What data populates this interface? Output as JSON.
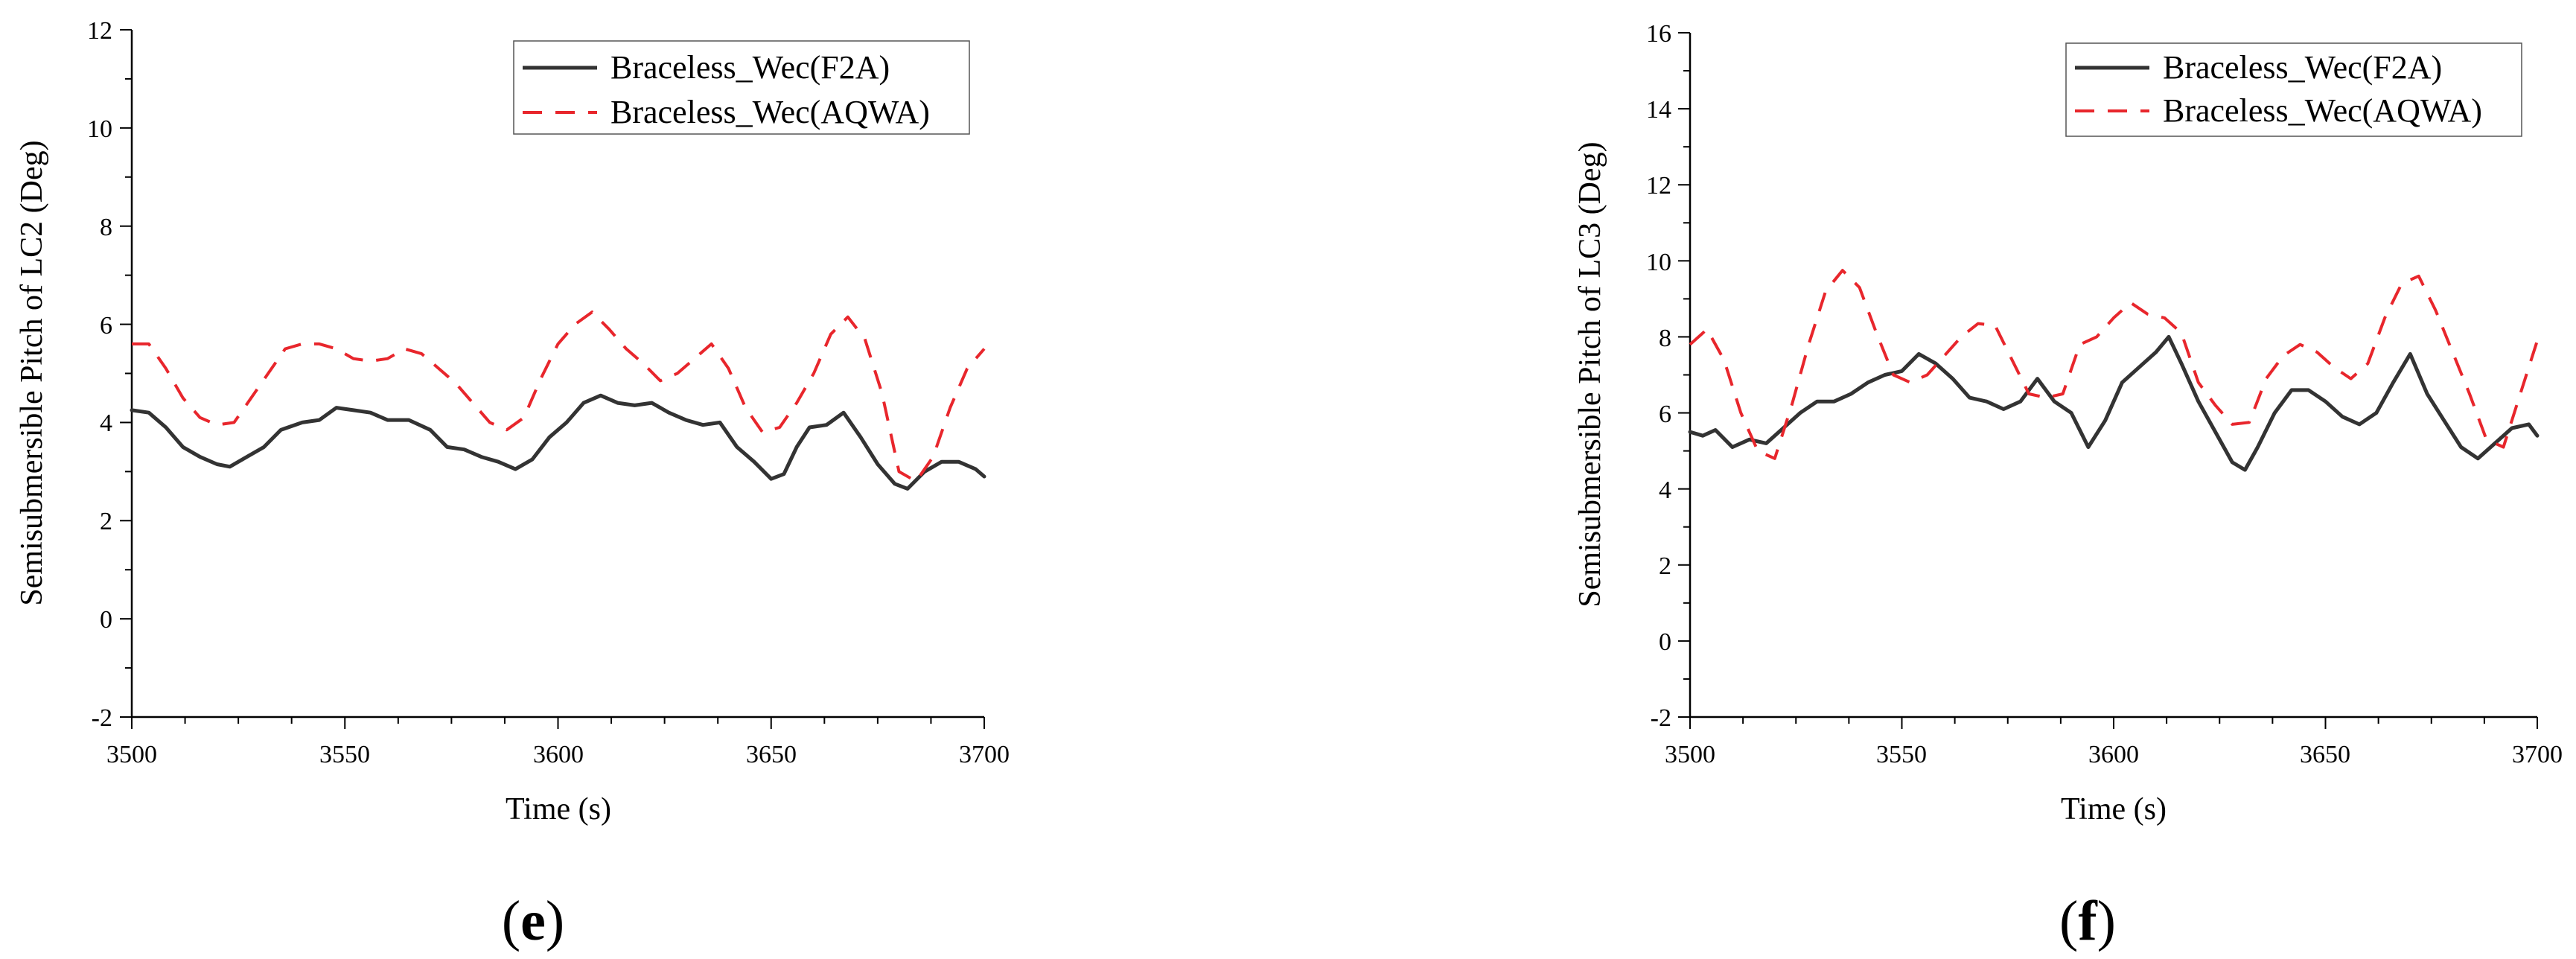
{
  "colors": {
    "f2a": "#333333",
    "aqwa": "#e8262c",
    "axis": "#000000"
  },
  "chart_data": [
    {
      "type": "line",
      "panel_label": "e",
      "panel_label_open": "(",
      "panel_label_close": ")",
      "xlabel": "Time (s)",
      "ylabel": "Semisubmersible Pitch of LC2 (Deg)",
      "xlim": [
        3500,
        3700
      ],
      "ylim": [
        -2,
        12
      ],
      "xticks": [
        "3500",
        "3550",
        "3600",
        "3650",
        "3700"
      ],
      "yticks": [
        "-2",
        "0",
        "2",
        "4",
        "6",
        "8",
        "10",
        "12"
      ],
      "legend_position": "top-right",
      "series": [
        {
          "name": "Braceless_Wec(F2A)",
          "style": "solid",
          "x": [
            3500,
            3504,
            3508,
            3512,
            3516,
            3520,
            3523,
            3527,
            3531,
            3535,
            3540,
            3544,
            3548,
            3552,
            3556,
            3560,
            3565,
            3570,
            3574,
            3578,
            3582,
            3586,
            3590,
            3594,
            3598,
            3602,
            3606,
            3610,
            3614,
            3618,
            3622,
            3626,
            3630,
            3634,
            3638,
            3642,
            3646,
            3650,
            3653,
            3656,
            3659,
            3663,
            3667,
            3671,
            3675,
            3679,
            3682,
            3686,
            3690,
            3694,
            3698,
            3700
          ],
          "values": [
            4.25,
            4.2,
            3.9,
            3.5,
            3.3,
            3.15,
            3.1,
            3.3,
            3.5,
            3.85,
            4.0,
            4.05,
            4.3,
            4.25,
            4.2,
            4.05,
            4.05,
            3.85,
            3.5,
            3.45,
            3.3,
            3.2,
            3.05,
            3.25,
            3.7,
            4.0,
            4.4,
            4.55,
            4.4,
            4.35,
            4.4,
            4.2,
            4.05,
            3.95,
            4.0,
            3.5,
            3.2,
            2.85,
            2.95,
            3.5,
            3.9,
            3.95,
            4.2,
            3.7,
            3.15,
            2.75,
            2.65,
            3.0,
            3.2,
            3.2,
            3.05,
            2.9
          ]
        },
        {
          "name": "Braceless_Wec(AQWA)",
          "style": "dashed",
          "x": [
            3500,
            3504,
            3508,
            3512,
            3516,
            3520,
            3524,
            3528,
            3532,
            3536,
            3540,
            3544,
            3548,
            3552,
            3556,
            3560,
            3564,
            3568,
            3572,
            3576,
            3580,
            3584,
            3588,
            3592,
            3596,
            3600,
            3604,
            3608,
            3612,
            3616,
            3620,
            3624,
            3628,
            3632,
            3636,
            3640,
            3644,
            3648,
            3652,
            3656,
            3660,
            3664,
            3668,
            3672,
            3676,
            3680,
            3684,
            3688,
            3692,
            3696,
            3700
          ],
          "values": [
            5.6,
            5.6,
            5.1,
            4.5,
            4.1,
            3.95,
            4.0,
            4.5,
            5.0,
            5.5,
            5.6,
            5.6,
            5.5,
            5.3,
            5.25,
            5.3,
            5.5,
            5.4,
            5.1,
            4.8,
            4.4,
            4.0,
            3.85,
            4.1,
            4.9,
            5.6,
            6.0,
            6.25,
            5.9,
            5.5,
            5.2,
            4.85,
            5.0,
            5.3,
            5.6,
            5.1,
            4.3,
            3.8,
            3.9,
            4.4,
            5.0,
            5.8,
            6.15,
            5.7,
            4.6,
            3.0,
            2.8,
            3.3,
            4.3,
            5.1,
            5.5
          ]
        }
      ]
    },
    {
      "type": "line",
      "panel_label": "f",
      "panel_label_open": "(",
      "panel_label_close": ")",
      "xlabel": "Time (s)",
      "ylabel": "Semisubmersible Pitch of LC3 (Deg)",
      "xlim": [
        3500,
        3700
      ],
      "ylim": [
        -2,
        16
      ],
      "xticks": [
        "3500",
        "3550",
        "3600",
        "3650",
        "3700"
      ],
      "yticks": [
        "-2",
        "0",
        "2",
        "4",
        "6",
        "8",
        "10",
        "12",
        "14",
        "16"
      ],
      "legend_position": "top-right",
      "series": [
        {
          "name": "Braceless_Wec(F2A)",
          "style": "solid",
          "x": [
            3500,
            3503,
            3506,
            3510,
            3514,
            3518,
            3522,
            3526,
            3530,
            3534,
            3538,
            3542,
            3546,
            3550,
            3554,
            3558,
            3562,
            3566,
            3570,
            3574,
            3578,
            3582,
            3586,
            3590,
            3594,
            3598,
            3602,
            3606,
            3610,
            3613,
            3616,
            3620,
            3624,
            3628,
            3631,
            3634,
            3638,
            3642,
            3646,
            3650,
            3654,
            3658,
            3662,
            3666,
            3670,
            3674,
            3678,
            3682,
            3686,
            3690,
            3694,
            3698,
            3700
          ],
          "values": [
            5.5,
            5.4,
            5.55,
            5.1,
            5.3,
            5.2,
            5.6,
            6.0,
            6.3,
            6.3,
            6.5,
            6.8,
            7.0,
            7.1,
            7.55,
            7.3,
            6.9,
            6.4,
            6.3,
            6.1,
            6.3,
            6.9,
            6.3,
            6.0,
            5.1,
            5.8,
            6.8,
            7.2,
            7.6,
            8.0,
            7.3,
            6.3,
            5.5,
            4.7,
            4.5,
            5.1,
            6.0,
            6.6,
            6.6,
            6.3,
            5.9,
            5.7,
            6.0,
            6.8,
            7.55,
            6.5,
            5.8,
            5.1,
            4.8,
            5.2,
            5.6,
            5.7,
            5.4
          ]
        },
        {
          "name": "Braceless_Wec(AQWA)",
          "style": "dashed",
          "x": [
            3500,
            3504,
            3508,
            3512,
            3516,
            3520,
            3524,
            3528,
            3532,
            3536,
            3540,
            3544,
            3548,
            3552,
            3556,
            3560,
            3564,
            3568,
            3572,
            3576,
            3580,
            3584,
            3588,
            3592,
            3596,
            3600,
            3604,
            3608,
            3612,
            3616,
            3620,
            3624,
            3628,
            3632,
            3636,
            3640,
            3644,
            3648,
            3652,
            3656,
            3660,
            3664,
            3668,
            3672,
            3676,
            3680,
            3684,
            3688,
            3692,
            3696,
            3700
          ],
          "values": [
            7.8,
            8.2,
            7.4,
            6.0,
            5.0,
            4.8,
            6.2,
            7.8,
            9.2,
            9.75,
            9.3,
            8.1,
            7.0,
            6.8,
            7.0,
            7.5,
            8.0,
            8.35,
            8.3,
            7.4,
            6.5,
            6.4,
            6.5,
            7.8,
            8.0,
            8.5,
            8.9,
            8.6,
            8.5,
            8.1,
            6.8,
            6.2,
            5.7,
            5.75,
            6.9,
            7.5,
            7.8,
            7.6,
            7.2,
            6.9,
            7.3,
            8.5,
            9.4,
            9.6,
            8.7,
            7.6,
            6.5,
            5.3,
            5.1,
            6.5,
            7.9
          ]
        }
      ]
    }
  ]
}
